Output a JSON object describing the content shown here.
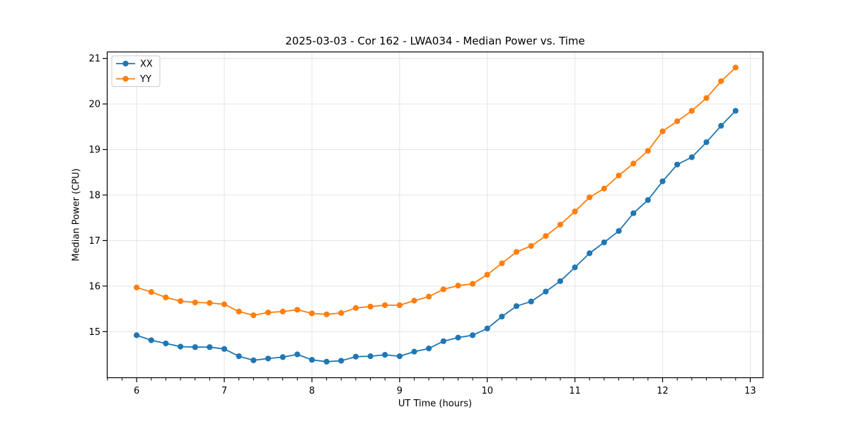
{
  "chart_data": {
    "type": "line",
    "title": "2025-03-03 - Cor 162 - LWA034 - Median Power vs. Time",
    "xlabel": "UT Time (hours)",
    "ylabel": "Median Power (CPU)",
    "xlim": [
      5.66,
      13.15
    ],
    "ylim": [
      13.98,
      21.15
    ],
    "x_ticks": [
      6,
      7,
      8,
      9,
      10,
      11,
      12,
      13
    ],
    "y_ticks": [
      15,
      16,
      17,
      18,
      19,
      20,
      21
    ],
    "x_minor_tick_step_hours": 0.1667,
    "grid": true,
    "legend_position": "upper left",
    "colors": {
      "xx": "#1f77b4",
      "yy": "#ff7f0e",
      "grid": "#e4e4e4",
      "spine": "#000000",
      "text": "#000000",
      "legend_border": "#cccccc",
      "legend_fill": "#ffffff"
    },
    "x": [
      6.0,
      6.167,
      6.333,
      6.5,
      6.667,
      6.833,
      7.0,
      7.167,
      7.333,
      7.5,
      7.667,
      7.833,
      8.0,
      8.167,
      8.333,
      8.5,
      8.667,
      8.833,
      9.0,
      9.167,
      9.333,
      9.5,
      9.667,
      9.833,
      10.0,
      10.167,
      10.333,
      10.5,
      10.667,
      10.833,
      11.0,
      11.167,
      11.333,
      11.5,
      11.667,
      11.833,
      12.0,
      12.167,
      12.333,
      12.5,
      12.667,
      12.833
    ],
    "series": [
      {
        "name": "XX",
        "color": "#1f77b4",
        "values": [
          14.92,
          14.81,
          14.74,
          14.67,
          14.66,
          14.66,
          14.62,
          14.46,
          14.37,
          14.41,
          14.44,
          14.5,
          14.38,
          14.34,
          14.36,
          14.45,
          14.46,
          14.49,
          14.46,
          14.56,
          14.63,
          14.79,
          14.87,
          14.92,
          15.07,
          15.33,
          15.56,
          15.66,
          15.88,
          16.11,
          16.41,
          16.72,
          16.96,
          17.21,
          17.6,
          17.89,
          18.3,
          18.67,
          18.83,
          19.16,
          19.52,
          19.85
        ]
      },
      {
        "name": "YY",
        "color": "#ff7f0e",
        "values": [
          15.97,
          15.87,
          15.75,
          15.67,
          15.64,
          15.63,
          15.6,
          15.44,
          15.36,
          15.42,
          15.44,
          15.48,
          15.4,
          15.38,
          15.41,
          15.52,
          15.55,
          15.58,
          15.58,
          15.68,
          15.77,
          15.93,
          16.01,
          16.05,
          16.25,
          16.5,
          16.75,
          16.88,
          17.1,
          17.35,
          17.64,
          17.95,
          18.14,
          18.43,
          18.69,
          18.97,
          19.4,
          19.62,
          19.85,
          20.13,
          20.5,
          20.8
        ]
      }
    ]
  }
}
